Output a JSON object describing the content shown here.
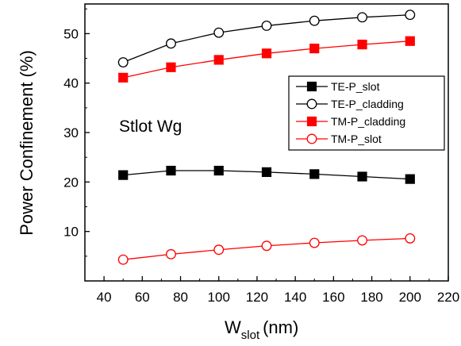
{
  "chart_data": {
    "type": "line",
    "title": "",
    "annotation": "Stlot Wg",
    "xlabel": {
      "main": "W",
      "subscript": "slot",
      "unit": "(nm)"
    },
    "ylabel": "Power Confinement (%)",
    "xlim": [
      30,
      220
    ],
    "ylim": [
      0,
      56
    ],
    "xticks": [
      40,
      60,
      80,
      100,
      120,
      140,
      160,
      180,
      200,
      220
    ],
    "yticks": [
      10,
      20,
      30,
      40,
      50
    ],
    "legend_position": "middle-right",
    "x": [
      50,
      75,
      100,
      125,
      150,
      175,
      200
    ],
    "series": [
      {
        "name": "TE-P_slot",
        "color": "#000000",
        "marker": "square",
        "filled": true,
        "values": [
          21.4,
          22.3,
          22.3,
          22.0,
          21.6,
          21.1,
          20.6
        ]
      },
      {
        "name": "TE-P_cladding",
        "color": "#000000",
        "marker": "circle",
        "filled": false,
        "values": [
          44.2,
          48.0,
          50.2,
          51.6,
          52.6,
          53.3,
          53.8
        ]
      },
      {
        "name": "TM-P_cladding",
        "color": "#ff0000",
        "marker": "square",
        "filled": true,
        "values": [
          41.1,
          43.2,
          44.7,
          46.0,
          47.0,
          47.8,
          48.5
        ]
      },
      {
        "name": "TM-P_slot",
        "color": "#ff0000",
        "marker": "circle",
        "filled": false,
        "values": [
          4.3,
          5.4,
          6.3,
          7.1,
          7.7,
          8.2,
          8.6
        ]
      }
    ]
  }
}
